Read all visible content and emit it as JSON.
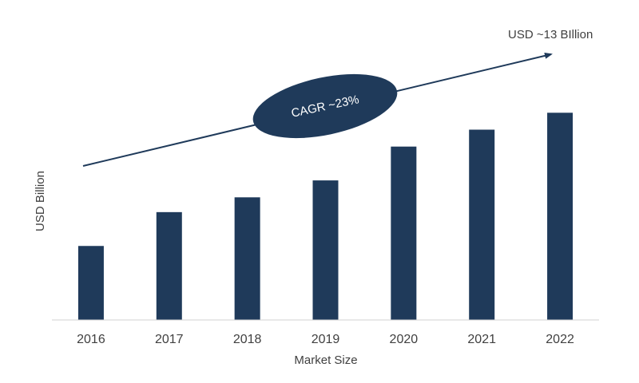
{
  "chart_data": {
    "type": "bar",
    "categories": [
      "2016",
      "2017",
      "2018",
      "2019",
      "2020",
      "2021",
      "2022"
    ],
    "values": [
      3.5,
      5.1,
      5.8,
      6.6,
      8.2,
      9.0,
      9.8
    ],
    "xlabel": "Market Size",
    "ylabel": "USD Billion",
    "ylim": [
      0,
      14
    ],
    "grid": false,
    "bar_color": "#1f3a5a",
    "annotations": {
      "cagr_label": "CAGR ~23%",
      "end_label": "USD ~13 BIllion"
    }
  }
}
